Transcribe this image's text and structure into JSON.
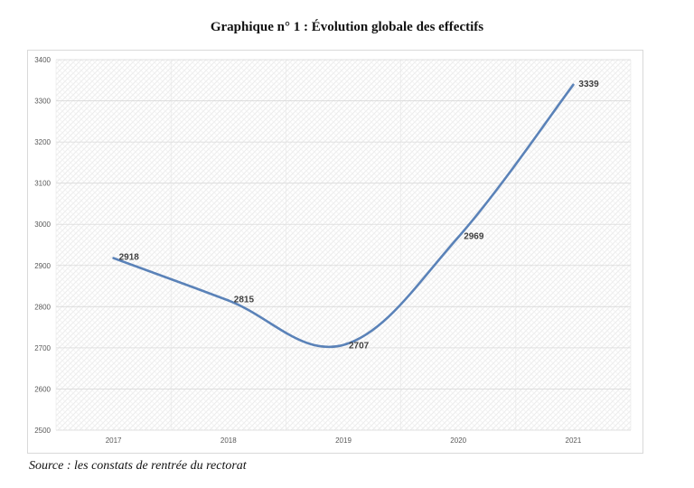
{
  "title": "Graphique n° 1 : Évolution globale des effectifs",
  "source": "Source : les constats de rentrée du rectorat",
  "chart_data": {
    "type": "line",
    "title": "Graphique n° 1 : Évolution globale des effectifs",
    "xlabel": "",
    "ylabel": "",
    "categories": [
      "2017",
      "2018",
      "2019",
      "2020",
      "2021"
    ],
    "series": [
      {
        "values": [
          2918,
          2815,
          2707,
          2969,
          3339
        ],
        "color": "#5a82b8"
      }
    ],
    "data_labels": [
      "2918",
      "2815",
      "2707",
      "2969",
      "3339"
    ],
    "ylim": [
      2500,
      3400
    ],
    "yticks": [
      2500,
      2600,
      2700,
      2800,
      2900,
      3000,
      3100,
      3200,
      3300,
      3400
    ],
    "grid": true,
    "legend": "none",
    "plot_background": "hatched"
  }
}
